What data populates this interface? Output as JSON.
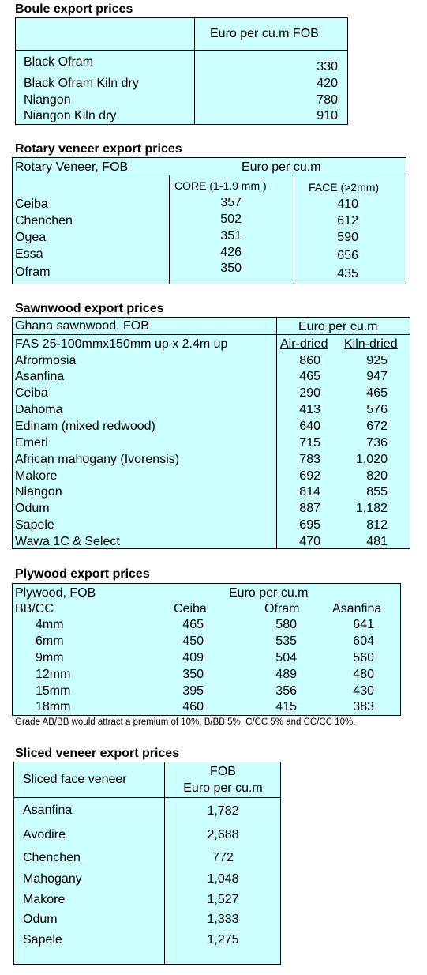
{
  "boule": {
    "title": "Boule export prices",
    "header": "Euro per cu.m FOB",
    "rows": [
      {
        "name": "Black Ofram",
        "value": "330"
      },
      {
        "name": "Black Ofram  Kiln dry",
        "value": "420"
      },
      {
        "name": "Niangon",
        "value": "780"
      },
      {
        "name": "Niangon Kiln dry",
        "value": "910"
      }
    ]
  },
  "rotary": {
    "title": "Rotary veneer export prices",
    "header_left": "Rotary Veneer,  FOB",
    "header_right": "Euro  per cu.m",
    "col_core": "CORE (1-1.9 mm )",
    "col_face": "FACE (>2mm)",
    "rows": [
      {
        "name": "Ceiba",
        "core": "357",
        "face": "410"
      },
      {
        "name": "Chenchen",
        "core": "502",
        "face": "612"
      },
      {
        "name": "Ogea",
        "core": "351",
        "face": "590"
      },
      {
        "name": "Essa",
        "core": "426",
        "face": "656"
      },
      {
        "name": "Ofram",
        "core": "350",
        "face": "435"
      }
    ]
  },
  "sawn": {
    "title": "Sawnwood export prices",
    "header_left": "Ghana sawnwood, FOB",
    "header_right": "Euro per cu.m",
    "sub_left": "FAS 25-100mmx150mm up x 2.4m up",
    "col_air": "Air-dried",
    "col_kiln": "Kiln-dried",
    "rows": [
      {
        "name": "Afrormosia",
        "air": "860",
        "kiln": "925"
      },
      {
        "name": "Asanfina",
        "air": "465",
        "kiln": "947"
      },
      {
        "name": "Ceiba",
        "air": "290",
        "kiln": "465"
      },
      {
        "name": "Dahoma",
        "air": "413",
        "kiln": "576"
      },
      {
        "name": "Edinam (mixed redwood)",
        "air": "640",
        "kiln": "672"
      },
      {
        "name": "Emeri",
        "air": "715",
        "kiln": "736"
      },
      {
        "name": "African mahogany (Ivorensis)",
        "air": "783",
        "kiln": "1,020"
      },
      {
        "name": "Makore",
        "air": "692",
        "kiln": "820"
      },
      {
        "name": "Niangon",
        "air": "814",
        "kiln": "855"
      },
      {
        "name": "Odum",
        "air": "887",
        "kiln": "1,182"
      },
      {
        "name": "Sapele",
        "air": "695",
        "kiln": "812"
      },
      {
        "name": "Wawa 1C & Select",
        "air": "470",
        "kiln": "481"
      }
    ]
  },
  "plywood": {
    "title": "Plywood export prices",
    "header_left": "Plywood, FOB",
    "header_right": "Euro per cu.m",
    "grade": "BB/CC",
    "cols": [
      "Ceiba",
      "Ofram",
      "Asanfina"
    ],
    "rows": [
      {
        "size": "4mm",
        "ceiba": "465",
        "ofram": "580",
        "asanfina": "641"
      },
      {
        "size": "6mm",
        "ceiba": "450",
        "ofram": "535",
        "asanfina": "604"
      },
      {
        "size": "9mm",
        "ceiba": "409",
        "ofram": "504",
        "asanfina": "560"
      },
      {
        "size": "12mm",
        "ceiba": "350",
        "ofram": "489",
        "asanfina": "480"
      },
      {
        "size": "15mm",
        "ceiba": "395",
        "ofram": "356",
        "asanfina": "430"
      },
      {
        "size": "18mm",
        "ceiba": "460",
        "ofram": "415",
        "asanfina": "383"
      }
    ],
    "note": "Grade AB/BB would attract a premium of 10%, B/BB 5%, C/CC 5% and CC/CC 10%."
  },
  "sliced": {
    "title": "Sliced veneer export prices",
    "header_left": "Sliced face veneer",
    "header_fob": "FOB",
    "header_euro": "Euro per cu.m",
    "rows": [
      {
        "name": "Asanfina",
        "value": "1,782"
      },
      {
        "name": "Avodire",
        "value": "2,688"
      },
      {
        "name": "Chenchen",
        "value": "772"
      },
      {
        "name": "Mahogany",
        "value": "1,048"
      },
      {
        "name": "Makore",
        "value": "1,527"
      },
      {
        "name": "Odum",
        "value": "1,333"
      },
      {
        "name": "Sapele",
        "value": "1,275"
      }
    ]
  }
}
